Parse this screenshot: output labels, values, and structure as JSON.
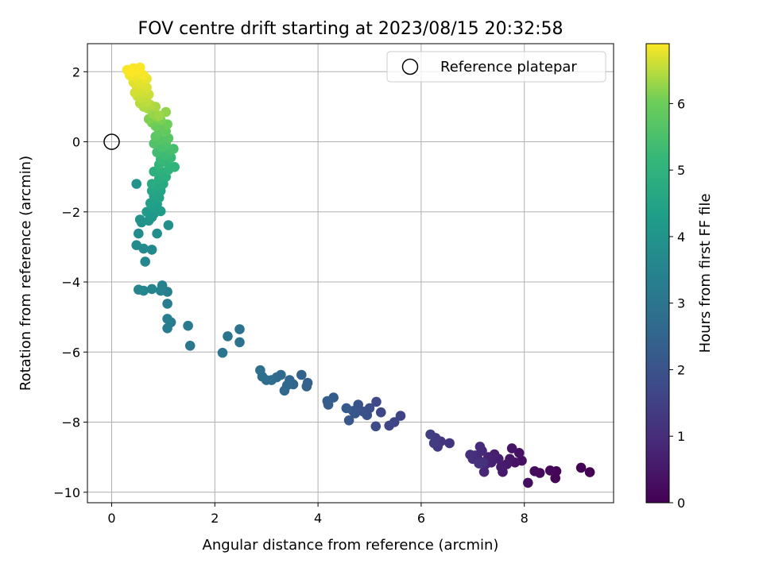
{
  "chart_data": {
    "type": "scatter",
    "title": "FOV centre drift starting at 2023/08/15 20:32:58",
    "xlabel": "Angular distance from reference (arcmin)",
    "ylabel": "Rotation from reference (arcmin)",
    "xlim": [
      -0.47,
      9.73
    ],
    "ylim": [
      -10.3,
      2.8
    ],
    "x_ticks": [
      0,
      2,
      4,
      6,
      8
    ],
    "y_ticks": [
      -10,
      -8,
      -6,
      -4,
      -2,
      0,
      2
    ],
    "x_tick_labels": [
      "0",
      "2",
      "4",
      "6",
      "8"
    ],
    "y_tick_labels": [
      "−10",
      "−8",
      "−6",
      "−4",
      "−2",
      "0",
      "2"
    ],
    "grid": true,
    "legend": {
      "placement": "top-right",
      "entries": [
        "Reference platepar"
      ]
    },
    "reference_point": {
      "name": "Reference platepar",
      "x": 0,
      "y": 0,
      "marker": "open-circle"
    },
    "colorbar": {
      "label": "Hours from first FF file",
      "range": [
        0,
        6.9
      ],
      "ticks": [
        0,
        1,
        2,
        3,
        4,
        5,
        6
      ],
      "tick_labels": [
        "0",
        "1",
        "2",
        "3",
        "4",
        "5",
        "6"
      ],
      "colormap": "viridis"
    },
    "series": [
      {
        "color_encodes": "Hours from first FF file",
        "points": [
          [
            9.27,
            -9.43,
            0.0
          ],
          [
            9.1,
            -9.3,
            0.04
          ],
          [
            8.6,
            -9.6,
            0.08
          ],
          [
            8.62,
            -9.4,
            0.12
          ],
          [
            8.5,
            -9.38,
            0.16
          ],
          [
            8.3,
            -9.45,
            0.2
          ],
          [
            8.2,
            -9.4,
            0.24
          ],
          [
            8.07,
            -9.73,
            0.28
          ],
          [
            7.95,
            -9.1,
            0.32
          ],
          [
            7.9,
            -8.88,
            0.36
          ],
          [
            7.82,
            -9.15,
            0.4
          ],
          [
            7.76,
            -8.75,
            0.44
          ],
          [
            7.72,
            -9.05,
            0.48
          ],
          [
            7.66,
            -9.2,
            0.52
          ],
          [
            7.58,
            -9.42,
            0.56
          ],
          [
            7.55,
            -9.28,
            0.6
          ],
          [
            7.5,
            -9.05,
            0.64
          ],
          [
            7.42,
            -8.92,
            0.68
          ],
          [
            7.36,
            -9.15,
            0.72
          ],
          [
            7.3,
            -9.0,
            0.76
          ],
          [
            7.25,
            -9.2,
            0.8
          ],
          [
            7.22,
            -9.42,
            0.84
          ],
          [
            7.18,
            -8.82,
            0.88
          ],
          [
            7.14,
            -8.7,
            0.92
          ],
          [
            7.1,
            -9.05,
            0.96
          ],
          [
            7.05,
            -8.95,
            1.0
          ],
          [
            7.0,
            -9.05,
            1.04
          ],
          [
            6.95,
            -8.93,
            1.08
          ],
          [
            7.2,
            -9.15,
            1.12
          ],
          [
            7.12,
            -9.18,
            1.16
          ],
          [
            6.55,
            -8.6,
            1.2
          ],
          [
            6.38,
            -8.55,
            1.25
          ],
          [
            6.32,
            -8.7,
            1.3
          ],
          [
            6.28,
            -8.45,
            1.35
          ],
          [
            6.25,
            -8.6,
            1.4
          ],
          [
            6.18,
            -8.35,
            1.45
          ],
          [
            5.6,
            -7.82,
            1.55
          ],
          [
            5.48,
            -8.0,
            1.6
          ],
          [
            5.38,
            -8.1,
            1.65
          ],
          [
            5.22,
            -7.72,
            1.7
          ],
          [
            5.13,
            -7.42,
            1.75
          ],
          [
            5.12,
            -8.12,
            1.8
          ],
          [
            5.0,
            -7.6,
            1.85
          ],
          [
            4.95,
            -7.8,
            1.9
          ],
          [
            4.88,
            -7.7,
            1.95
          ],
          [
            4.78,
            -7.5,
            2.0
          ],
          [
            4.72,
            -7.75,
            2.05
          ],
          [
            4.68,
            -7.68,
            2.1
          ],
          [
            4.6,
            -7.95,
            2.15
          ],
          [
            4.55,
            -7.6,
            2.2
          ],
          [
            4.3,
            -7.3,
            2.25
          ],
          [
            4.2,
            -7.5,
            2.28
          ],
          [
            4.18,
            -7.4,
            2.32
          ],
          [
            3.8,
            -6.88,
            2.38
          ],
          [
            3.78,
            -6.98,
            2.42
          ],
          [
            3.68,
            -6.65,
            2.46
          ],
          [
            3.52,
            -6.92,
            2.5
          ],
          [
            3.45,
            -6.8,
            2.54
          ],
          [
            3.4,
            -6.95,
            2.58
          ],
          [
            3.35,
            -7.1,
            2.62
          ],
          [
            3.28,
            -6.65,
            2.66
          ],
          [
            3.2,
            -6.72,
            2.7
          ],
          [
            3.1,
            -6.8,
            2.74
          ],
          [
            3.0,
            -6.8,
            2.78
          ],
          [
            2.92,
            -6.7,
            2.82
          ],
          [
            2.88,
            -6.52,
            2.86
          ],
          [
            2.48,
            -5.35,
            2.92
          ],
          [
            2.48,
            -5.72,
            2.96
          ],
          [
            2.25,
            -5.55,
            3.0
          ],
          [
            2.15,
            -6.02,
            3.04
          ],
          [
            1.52,
            -5.82,
            3.1
          ],
          [
            1.48,
            -5.25,
            3.14
          ],
          [
            1.15,
            -5.15,
            3.2
          ],
          [
            1.08,
            -5.32,
            3.24
          ],
          [
            1.08,
            -5.05,
            3.28
          ],
          [
            1.08,
            -4.62,
            3.32
          ],
          [
            1.08,
            -4.28,
            3.36
          ],
          [
            0.98,
            -4.1,
            3.4
          ],
          [
            0.95,
            -4.25,
            3.44
          ],
          [
            0.78,
            -4.2,
            3.5
          ],
          [
            0.62,
            -4.25,
            3.54
          ],
          [
            0.52,
            -4.22,
            3.58
          ],
          [
            0.65,
            -3.42,
            3.62
          ],
          [
            0.78,
            -3.08,
            3.66
          ],
          [
            0.62,
            -3.05,
            3.7
          ],
          [
            0.48,
            -2.95,
            3.74
          ],
          [
            0.52,
            -2.62,
            3.78
          ],
          [
            0.88,
            -2.62,
            3.82
          ],
          [
            1.1,
            -2.38,
            3.86
          ],
          [
            0.58,
            -2.3,
            3.9
          ],
          [
            0.55,
            -2.22,
            3.94
          ],
          [
            0.48,
            -1.2,
            3.98
          ],
          [
            0.72,
            -2.25,
            4.05
          ],
          [
            0.78,
            -2.15,
            4.1
          ],
          [
            0.82,
            -2.05,
            4.15
          ],
          [
            0.68,
            -2.0,
            4.2
          ],
          [
            0.95,
            -1.98,
            4.25
          ],
          [
            0.8,
            -1.9,
            4.3
          ],
          [
            0.88,
            -1.78,
            4.35
          ],
          [
            0.75,
            -1.75,
            4.4
          ],
          [
            0.92,
            -1.6,
            4.45
          ],
          [
            0.82,
            -1.55,
            4.5
          ],
          [
            0.95,
            -1.4,
            4.55
          ],
          [
            0.78,
            -1.4,
            4.6
          ],
          [
            0.88,
            -1.25,
            4.65
          ],
          [
            1.0,
            -1.2,
            4.7
          ],
          [
            0.78,
            -1.2,
            4.75
          ],
          [
            0.92,
            -1.05,
            4.8
          ],
          [
            1.05,
            -1.0,
            4.85
          ],
          [
            0.82,
            -0.85,
            4.9
          ],
          [
            0.95,
            -0.85,
            4.95
          ],
          [
            1.1,
            -0.8,
            5.0
          ],
          [
            1.22,
            -0.72,
            5.05
          ],
          [
            0.92,
            -0.65,
            5.1
          ],
          [
            1.08,
            -0.6,
            5.15
          ],
          [
            0.95,
            -0.5,
            5.2
          ],
          [
            1.15,
            -0.45,
            5.25
          ],
          [
            1.02,
            -0.38,
            5.3
          ],
          [
            0.88,
            -0.3,
            5.35
          ],
          [
            1.12,
            -0.25,
            5.4
          ],
          [
            1.2,
            -0.2,
            5.45
          ],
          [
            0.98,
            -0.15,
            5.5
          ],
          [
            1.05,
            -0.05,
            5.55
          ],
          [
            0.82,
            -0.05,
            5.6
          ],
          [
            0.95,
            0.05,
            5.65
          ],
          [
            1.1,
            0.1,
            5.7
          ],
          [
            0.85,
            0.15,
            5.75
          ],
          [
            0.92,
            0.28,
            5.8
          ],
          [
            1.05,
            0.3,
            5.85
          ],
          [
            0.98,
            0.4,
            5.9
          ],
          [
            0.85,
            0.45,
            5.95
          ],
          [
            1.08,
            0.5,
            6.0
          ],
          [
            0.78,
            0.55,
            6.05
          ],
          [
            0.95,
            0.62,
            6.1
          ],
          [
            0.72,
            0.65,
            6.15
          ],
          [
            0.88,
            0.7,
            6.2
          ],
          [
            1.05,
            0.85,
            6.25
          ],
          [
            0.8,
            0.8,
            6.28
          ],
          [
            0.92,
            0.75,
            6.32
          ],
          [
            0.7,
            0.95,
            6.35
          ],
          [
            0.85,
            1.0,
            6.38
          ],
          [
            0.62,
            1.0,
            6.42
          ],
          [
            0.75,
            1.05,
            6.45
          ],
          [
            0.55,
            1.1,
            6.48
          ],
          [
            0.68,
            1.15,
            6.52
          ],
          [
            0.58,
            1.25,
            6.55
          ],
          [
            0.5,
            1.3,
            6.58
          ],
          [
            0.72,
            1.35,
            6.6
          ],
          [
            0.62,
            1.4,
            6.62
          ],
          [
            0.45,
            1.4,
            6.64
          ],
          [
            0.55,
            1.5,
            6.66
          ],
          [
            0.68,
            1.55,
            6.68
          ],
          [
            0.48,
            1.6,
            6.7
          ],
          [
            0.6,
            1.65,
            6.72
          ],
          [
            0.42,
            1.7,
            6.74
          ],
          [
            0.55,
            1.75,
            6.76
          ],
          [
            0.68,
            1.8,
            6.78
          ],
          [
            0.45,
            1.85,
            6.8
          ],
          [
            0.35,
            1.9,
            6.82
          ],
          [
            0.52,
            1.95,
            6.84
          ],
          [
            0.62,
            1.9,
            6.85
          ],
          [
            0.3,
            2.05,
            6.86
          ],
          [
            0.42,
            2.1,
            6.87
          ],
          [
            0.55,
            2.12,
            6.88
          ],
          [
            0.48,
            2.05,
            6.89
          ],
          [
            0.38,
            2.0,
            6.9
          ]
        ]
      }
    ]
  }
}
